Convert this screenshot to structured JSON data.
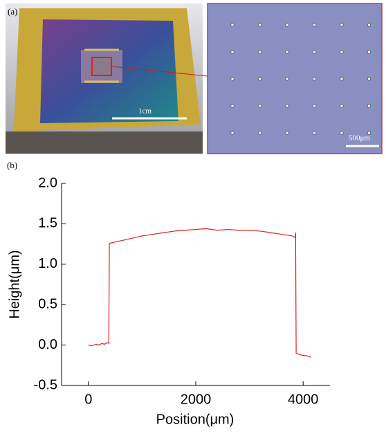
{
  "panel_a": {
    "label": "(a)",
    "scale_left": "1cm",
    "scale_right": "500μm"
  },
  "panel_b": {
    "label": "(b)"
  },
  "chart_data": {
    "type": "line",
    "xlabel": "Position(μm)",
    "ylabel": "Height(μm)",
    "xlim": [
      -500,
      4500
    ],
    "xticks": [
      0,
      2000,
      4000
    ],
    "ylim": [
      -0.5,
      2.0
    ],
    "yticks": [
      -0.5,
      {
        "value": 0,
        "label": "0.0"
      },
      0.5,
      {
        "value": 1,
        "label": "1.0"
      },
      1.5,
      {
        "value": 2,
        "label": "2.0"
      }
    ],
    "series": [
      {
        "color": "#e0201c",
        "x": [
          0,
          50,
          100,
          150,
          200,
          250,
          300,
          350,
          380,
          390,
          400,
          600,
          800,
          1000,
          1200,
          1400,
          1600,
          1800,
          2000,
          2200,
          2400,
          2600,
          2800,
          3000,
          3200,
          3400,
          3600,
          3800,
          3850,
          3860,
          3870,
          3900,
          3950,
          4000,
          4050,
          4100,
          4150
        ],
        "values": [
          0.0,
          -0.01,
          0.0,
          0.01,
          0.0,
          0.02,
          0.01,
          0.03,
          0.02,
          1.25,
          1.26,
          1.29,
          1.32,
          1.35,
          1.37,
          1.39,
          1.41,
          1.42,
          1.43,
          1.44,
          1.42,
          1.43,
          1.42,
          1.42,
          1.41,
          1.39,
          1.37,
          1.35,
          1.33,
          1.39,
          -0.1,
          -0.11,
          -0.12,
          -0.13,
          -0.13,
          -0.14,
          -0.15
        ]
      }
    ]
  }
}
